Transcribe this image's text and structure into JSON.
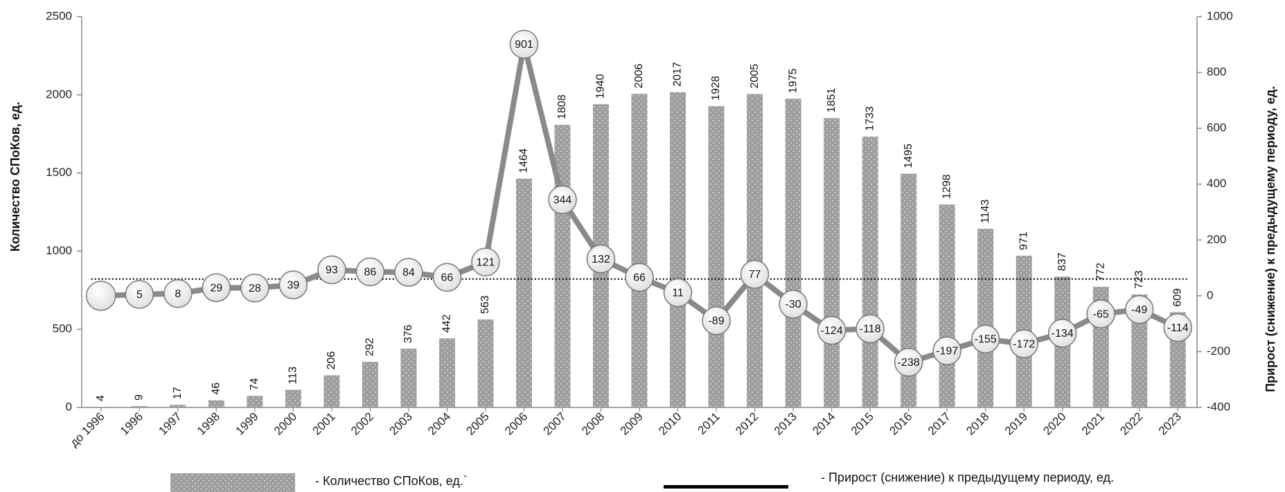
{
  "chart_data": {
    "type": "bar",
    "categories": [
      "до 1996",
      "1996",
      "1997",
      "1998",
      "1999",
      "2000",
      "2001",
      "2002",
      "2003",
      "2004",
      "2005",
      "2006",
      "2007",
      "2008",
      "2009",
      "2010",
      "2011",
      "2012",
      "2013",
      "2014",
      "2015",
      "2016",
      "2017",
      "2018",
      "2019",
      "2020",
      "2021",
      "2022",
      "2023"
    ],
    "series": [
      {
        "name": "- Количество СПоКов, ед.`",
        "type": "bar",
        "axis": "left",
        "values": [
          4,
          9,
          17,
          46,
          74,
          113,
          206,
          292,
          376,
          442,
          563,
          1464,
          1808,
          1940,
          2006,
          2017,
          1928,
          2005,
          1975,
          1851,
          1733,
          1495,
          1298,
          1143,
          971,
          837,
          772,
          723,
          609
        ]
      },
      {
        "name": "- Прирост (снижение) к предыдущему периоду, ед.",
        "type": "line",
        "axis": "right",
        "values": [
          null,
          5,
          8,
          29,
          28,
          39,
          93,
          86,
          84,
          66,
          121,
          901,
          344,
          132,
          66,
          11,
          -89,
          77,
          -30,
          -124,
          -118,
          -238,
          -197,
          -155,
          -172,
          -134,
          -65,
          -49,
          -114
        ]
      }
    ],
    "ylabel": "Количество СПоКов, ед.",
    "y2label": "Прирост (снижение) к предыдущему периоду, ед.",
    "ylim": [
      0,
      2500
    ],
    "y2lim": [
      -400,
      1000
    ],
    "yticks": [
      0,
      500,
      1000,
      1500,
      2000,
      2500
    ],
    "y2ticks": [
      -400,
      -200,
      0,
      200,
      400,
      600,
      800,
      1000
    ],
    "trend_line": "dotted horizontal",
    "grid": false,
    "legend_position": "bottom",
    "colors": {
      "bar": "#9e9e9e",
      "line": "#8a8a8a",
      "marker_fill": "#ffffff",
      "trend": "#000000",
      "legend_line": "#000000"
    }
  }
}
